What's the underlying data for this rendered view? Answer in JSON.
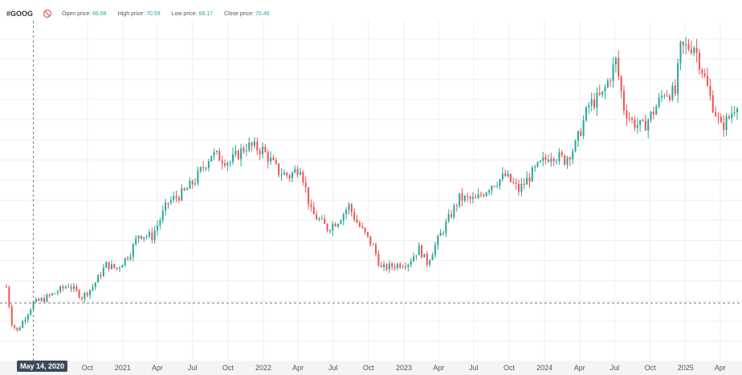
{
  "header": {
    "ticker": "#GOOG",
    "open_label": "Open price:",
    "open_value": "66.68",
    "high_label": "High price:",
    "high_value": "70.59",
    "low_label": "Low price:",
    "low_value": "66.17",
    "close_label": "Close price:",
    "close_value": "70.46",
    "icon": "no-entry-icon"
  },
  "crosshair": {
    "date": "May 14, 2020",
    "price": 70
  },
  "colors": {
    "up": "#26a69a",
    "down": "#ef5350",
    "grid": "#efefef",
    "axis_bg": "#f4f4f4",
    "crosshair": "#777777",
    "label_bg": "#3d4a5c"
  },
  "chart_data": {
    "type": "candlestick",
    "title": "#GOOG",
    "interval": "weekly",
    "xlim": [
      "2020-03-05",
      "2025-05-15"
    ],
    "ylim": [
      41,
      210
    ],
    "grid": true,
    "x_tick_labels": [
      "Oct",
      "2021",
      "Apr",
      "Jul",
      "Oct",
      "2022",
      "Apr",
      "Jul",
      "Oct",
      "2023",
      "Apr",
      "Jul",
      "Oct",
      "2024",
      "Apr",
      "Jul",
      "Oct",
      "2025",
      "Apr"
    ],
    "x_tick_dates": [
      "2020-10-01",
      "2021-01-01",
      "2021-04-01",
      "2021-07-01",
      "2021-10-01",
      "2022-01-01",
      "2022-04-01",
      "2022-07-01",
      "2022-10-01",
      "2023-01-01",
      "2023-04-01",
      "2023-07-01",
      "2023-10-01",
      "2024-01-01",
      "2024-04-01",
      "2024-07-01",
      "2024-10-01",
      "2025-01-01",
      "2025-04-01"
    ],
    "close_anchors": [
      [
        "2020-03-05",
        78
      ],
      [
        "2020-03-19",
        60
      ],
      [
        "2020-04-02",
        56
      ],
      [
        "2020-04-23",
        63
      ],
      [
        "2020-05-14",
        70
      ],
      [
        "2020-06-11",
        72
      ],
      [
        "2020-07-09",
        75
      ],
      [
        "2020-08-13",
        79
      ],
      [
        "2020-09-17",
        73
      ],
      [
        "2020-10-15",
        78
      ],
      [
        "2020-11-19",
        89
      ],
      [
        "2020-12-17",
        87
      ],
      [
        "2021-01-21",
        95
      ],
      [
        "2021-02-11",
        104
      ],
      [
        "2021-03-18",
        103
      ],
      [
        "2021-04-29",
        120
      ],
      [
        "2021-06-10",
        125
      ],
      [
        "2021-07-08",
        131
      ],
      [
        "2021-08-19",
        144
      ],
      [
        "2021-10-07",
        140
      ],
      [
        "2021-11-18",
        148
      ],
      [
        "2021-12-30",
        146
      ],
      [
        "2022-02-10",
        135
      ],
      [
        "2022-03-10",
        133
      ],
      [
        "2022-04-07",
        138
      ],
      [
        "2022-05-05",
        115
      ],
      [
        "2022-06-16",
        107
      ],
      [
        "2022-07-14",
        111
      ],
      [
        "2022-08-11",
        118
      ],
      [
        "2022-09-01",
        110
      ],
      [
        "2022-10-13",
        98
      ],
      [
        "2022-11-03",
        87
      ],
      [
        "2022-12-15",
        89
      ],
      [
        "2023-01-12",
        90
      ],
      [
        "2023-02-09",
        97
      ],
      [
        "2023-03-02",
        90
      ],
      [
        "2023-04-06",
        104
      ],
      [
        "2023-05-25",
        122
      ],
      [
        "2023-07-06",
        121
      ],
      [
        "2023-08-17",
        129
      ],
      [
        "2023-09-21",
        133
      ],
      [
        "2023-10-26",
        126
      ],
      [
        "2023-12-07",
        136
      ],
      [
        "2024-01-18",
        144
      ],
      [
        "2024-02-22",
        141
      ],
      [
        "2024-03-21",
        148
      ],
      [
        "2024-04-25",
        168
      ],
      [
        "2024-05-30",
        173
      ],
      [
        "2024-07-04",
        190
      ],
      [
        "2024-07-25",
        167
      ],
      [
        "2024-08-15",
        160
      ],
      [
        "2024-09-12",
        157
      ],
      [
        "2024-10-10",
        165
      ],
      [
        "2024-11-07",
        175
      ],
      [
        "2024-12-05",
        174
      ],
      [
        "2024-12-19",
        196
      ],
      [
        "2025-01-23",
        198
      ],
      [
        "2025-02-13",
        186
      ],
      [
        "2025-03-06",
        172
      ],
      [
        "2025-04-03",
        157
      ],
      [
        "2025-04-24",
        162
      ],
      [
        "2025-05-15",
        170
      ]
    ]
  }
}
